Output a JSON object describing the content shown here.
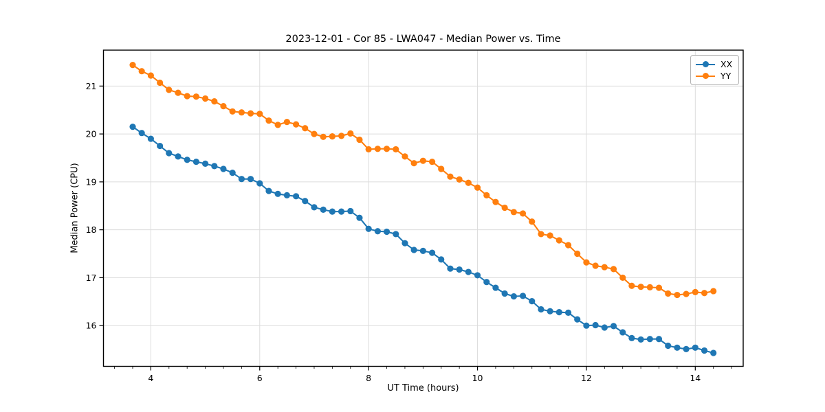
{
  "figure": {
    "background": "#ffffff"
  },
  "chart_data": {
    "type": "line",
    "title": "2023-12-01 - Cor 85 - LWA047 - Median Power vs. Time",
    "xlabel": "UT Time (hours)",
    "ylabel": "Median Power (CPU)",
    "xlim": [
      3.13,
      14.88
    ],
    "ylim": [
      15.15,
      21.75
    ],
    "xticks": [
      4,
      6,
      8,
      10,
      12,
      14
    ],
    "yticks": [
      16,
      17,
      18,
      19,
      20,
      21
    ],
    "minor_xtick_step": 0.33333,
    "grid": true,
    "grid_color": "#dcdcdc",
    "spine_color": "#000000",
    "legend_position": "upper right",
    "marker": "circle",
    "x": [
      3.667,
      3.833,
      4.0,
      4.167,
      4.333,
      4.5,
      4.667,
      4.833,
      5.0,
      5.167,
      5.333,
      5.5,
      5.667,
      5.833,
      6.0,
      6.167,
      6.333,
      6.5,
      6.667,
      6.833,
      7.0,
      7.167,
      7.333,
      7.5,
      7.667,
      7.833,
      8.0,
      8.167,
      8.333,
      8.5,
      8.667,
      8.833,
      9.0,
      9.167,
      9.333,
      9.5,
      9.667,
      9.833,
      10.0,
      10.167,
      10.333,
      10.5,
      10.667,
      10.833,
      11.0,
      11.167,
      11.333,
      11.5,
      11.667,
      11.833,
      12.0,
      12.167,
      12.333,
      12.5,
      12.667,
      12.833,
      13.0,
      13.167,
      13.333,
      13.5,
      13.667,
      13.833,
      14.0,
      14.167,
      14.333
    ],
    "series": [
      {
        "name": "XX",
        "color": "#1f77b4",
        "values": [
          20.15,
          20.02,
          19.9,
          19.75,
          19.6,
          19.53,
          19.46,
          19.42,
          19.38,
          19.33,
          19.27,
          19.19,
          19.06,
          19.06,
          18.97,
          18.81,
          18.75,
          18.72,
          18.7,
          18.6,
          18.47,
          18.42,
          18.38,
          18.38,
          18.39,
          18.25,
          18.02,
          17.97,
          17.96,
          17.91,
          17.72,
          17.58,
          17.56,
          17.52,
          17.38,
          17.19,
          17.17,
          17.12,
          17.05,
          16.91,
          16.79,
          16.67,
          16.61,
          16.62,
          16.51,
          16.34,
          16.3,
          16.28,
          16.27,
          16.13,
          16.0,
          16.01,
          15.96,
          15.99,
          15.86,
          15.74,
          15.71,
          15.72,
          15.72,
          15.58,
          15.54,
          15.51,
          15.54,
          15.48,
          15.43
        ]
      },
      {
        "name": "YY",
        "color": "#ff7f0e",
        "values": [
          21.44,
          21.31,
          21.22,
          21.07,
          20.92,
          20.86,
          20.79,
          20.78,
          20.74,
          20.68,
          20.58,
          20.47,
          20.45,
          20.43,
          20.42,
          20.28,
          20.19,
          20.25,
          20.2,
          20.12,
          20.0,
          19.94,
          19.95,
          19.96,
          20.01,
          19.88,
          19.68,
          19.69,
          19.69,
          19.68,
          19.53,
          19.39,
          19.44,
          19.42,
          19.27,
          19.11,
          19.05,
          18.98,
          18.88,
          18.72,
          18.58,
          18.46,
          18.37,
          18.34,
          18.17,
          17.91,
          17.88,
          17.78,
          17.68,
          17.5,
          17.32,
          17.25,
          17.22,
          17.18,
          17.0,
          16.83,
          16.81,
          16.8,
          16.79,
          16.67,
          16.64,
          16.66,
          16.7,
          16.68,
          16.72
        ]
      }
    ]
  },
  "legend": {
    "items": [
      {
        "label": "XX",
        "color": "#1f77b4"
      },
      {
        "label": "YY",
        "color": "#ff7f0e"
      }
    ]
  }
}
